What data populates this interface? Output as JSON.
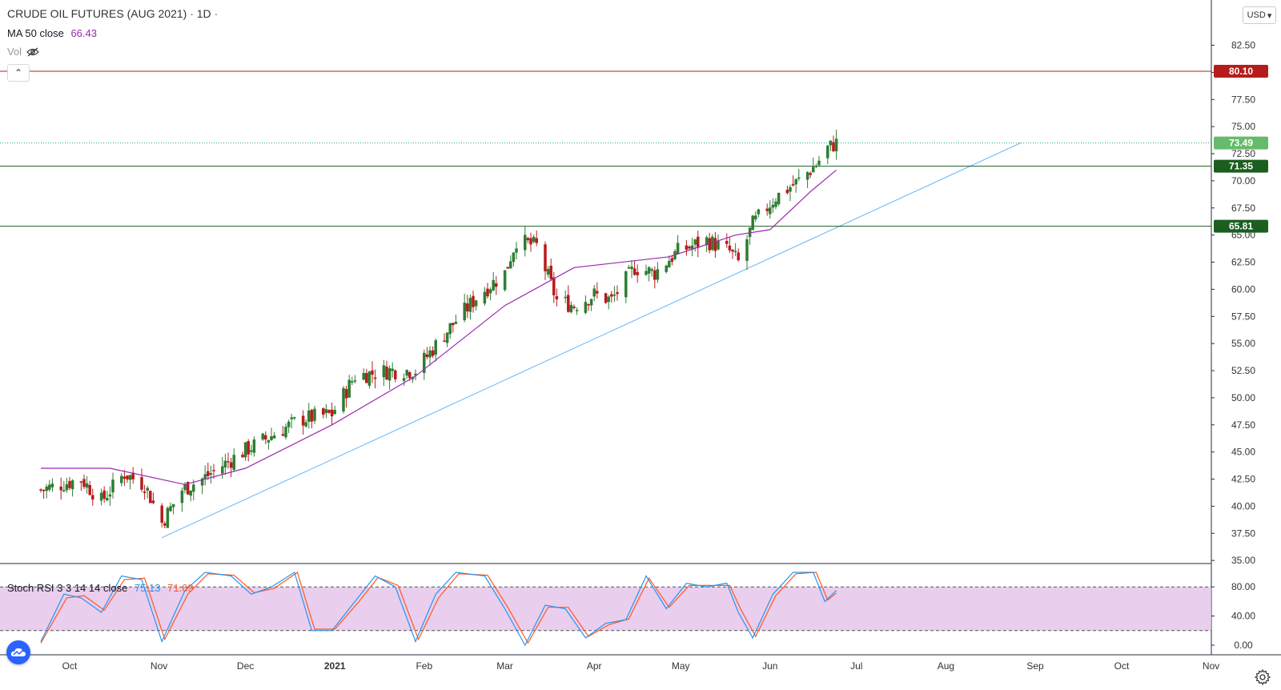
{
  "header": {
    "symbol": "CRUDE OIL FUTURES (AUG 2021)",
    "interval": "1D",
    "sep": "·",
    "ma_label": "MA 50 close",
    "ma_value": "66.43",
    "vol_label": "Vol",
    "collapse_glyph": "⌃"
  },
  "currency": "USD",
  "stoch": {
    "label": "Stoch RSI 3 3 14 14 close",
    "k": "75.13",
    "d": "71.69"
  },
  "colors": {
    "up": "#26a69a",
    "up_body": "#2e7d32",
    "down": "#b71c1c",
    "ma": "#9c27b0",
    "trend": "#64b5f6",
    "stoch_k": "#2196f3",
    "stoch_d": "#ff5722",
    "stoch_band": "#e1bee7",
    "resistance": "#b71c1c",
    "support": "#1b5e20",
    "price_label": "#66bb6a"
  },
  "chart_data": {
    "type": "candlestick",
    "title": "CRUDE OIL FUTURES (AUG 2021)",
    "interval": "1D",
    "y_ticks": [
      35.0,
      37.5,
      40.0,
      42.5,
      45.0,
      47.5,
      50.0,
      52.5,
      55.0,
      57.5,
      60.0,
      62.5,
      65.0,
      67.5,
      70.0,
      72.5,
      75.0,
      77.5,
      80.0,
      82.5
    ],
    "ylim": [
      34.0,
      86.0
    ],
    "x_ticks": [
      "Oct",
      "Nov",
      "Dec",
      "2021",
      "Feb",
      "Mar",
      "Apr",
      "May",
      "Jun",
      "Jul",
      "Aug",
      "Sep",
      "Oct",
      "Nov"
    ],
    "last_price": 73.49,
    "horizontal_levels": [
      {
        "value": 80.1,
        "label": "80.10",
        "role": "resistance"
      },
      {
        "value": 71.35,
        "label": "71.35",
        "role": "support"
      },
      {
        "value": 65.81,
        "label": "65.81",
        "role": "support"
      }
    ],
    "trendline": {
      "from": [
        "2020-11-02",
        37.1
      ],
      "to": [
        "2021-08-27",
        73.5
      ]
    },
    "ma50_anchors": [
      [
        "2020-09-21",
        43.5
      ],
      [
        "2020-10-15",
        43.5
      ],
      [
        "2020-11-10",
        42.0
      ],
      [
        "2020-12-01",
        43.5
      ],
      [
        "2020-12-31",
        47.5
      ],
      [
        "2021-01-29",
        52.0
      ],
      [
        "2021-03-01",
        58.5
      ],
      [
        "2021-03-25",
        62.0
      ],
      [
        "2021-04-27",
        63.0
      ],
      [
        "2021-05-20",
        65.0
      ],
      [
        "2021-06-01",
        65.5
      ],
      [
        "2021-06-15",
        69.0
      ],
      [
        "2021-06-24",
        71.0
      ]
    ],
    "price_anchors": [
      [
        "2020-09-21",
        41.5
      ],
      [
        "2020-10-05",
        42.5
      ],
      [
        "2020-10-12",
        40.5
      ],
      [
        "2020-10-20",
        43.0
      ],
      [
        "2020-10-27",
        42.0
      ],
      [
        "2020-11-02",
        38.5
      ],
      [
        "2020-11-09",
        41.5
      ],
      [
        "2020-11-16",
        42.5
      ],
      [
        "2020-11-30",
        45.0
      ],
      [
        "2020-12-10",
        46.5
      ],
      [
        "2020-12-20",
        48.0
      ],
      [
        "2020-12-31",
        48.5
      ],
      [
        "2021-01-08",
        52.0
      ],
      [
        "2021-01-20",
        52.5
      ],
      [
        "2021-01-29",
        52.5
      ],
      [
        "2021-02-10",
        56.5
      ],
      [
        "2021-02-20",
        59.5
      ],
      [
        "2021-03-01",
        61.5
      ],
      [
        "2021-03-05",
        64.5
      ],
      [
        "2021-03-12",
        64.0
      ],
      [
        "2021-03-19",
        59.0
      ],
      [
        "2021-03-25",
        58.5
      ],
      [
        "2021-04-01",
        59.5
      ],
      [
        "2021-04-07",
        59.0
      ],
      [
        "2021-04-15",
        62.0
      ],
      [
        "2021-04-22",
        61.5
      ],
      [
        "2021-04-30",
        63.5
      ],
      [
        "2021-05-10",
        64.5
      ],
      [
        "2021-05-18",
        63.5
      ],
      [
        "2021-05-21",
        62.5
      ],
      [
        "2021-05-26",
        66.0
      ],
      [
        "2021-06-03",
        68.5
      ],
      [
        "2021-06-11",
        70.0
      ],
      [
        "2021-06-17",
        71.5
      ],
      [
        "2021-06-21",
        73.0
      ],
      [
        "2021-06-24",
        73.49
      ]
    ],
    "stoch_rsi": {
      "k_period": 3,
      "d_period": 3,
      "rsi_length": 14,
      "stoch_length": 14,
      "source": "close",
      "k_last": 75.13,
      "d_last": 71.69,
      "y_ticks": [
        0.0,
        40.0,
        80.0
      ],
      "upper_band": 80,
      "lower_band": 20,
      "k_anchors": [
        [
          "2020-09-21",
          5
        ],
        [
          "2020-09-29",
          70
        ],
        [
          "2020-10-05",
          65
        ],
        [
          "2020-10-12",
          45
        ],
        [
          "2020-10-19",
          95
        ],
        [
          "2020-10-26",
          90
        ],
        [
          "2020-11-02",
          5
        ],
        [
          "2020-11-10",
          75
        ],
        [
          "2020-11-17",
          100
        ],
        [
          "2020-11-26",
          95
        ],
        [
          "2020-12-03",
          70
        ],
        [
          "2020-12-10",
          80
        ],
        [
          "2020-12-18",
          100
        ],
        [
          "2020-12-24",
          20
        ],
        [
          "2020-12-31",
          20
        ],
        [
          "2021-01-08",
          60
        ],
        [
          "2021-01-15",
          95
        ],
        [
          "2021-01-22",
          80
        ],
        [
          "2021-01-29",
          5
        ],
        [
          "2021-02-05",
          70
        ],
        [
          "2021-02-12",
          100
        ],
        [
          "2021-02-22",
          95
        ],
        [
          "2021-03-01",
          50
        ],
        [
          "2021-03-08",
          0
        ],
        [
          "2021-03-15",
          55
        ],
        [
          "2021-03-22",
          50
        ],
        [
          "2021-03-29",
          10
        ],
        [
          "2021-04-05",
          30
        ],
        [
          "2021-04-12",
          35
        ],
        [
          "2021-04-19",
          95
        ],
        [
          "2021-04-26",
          50
        ],
        [
          "2021-05-03",
          85
        ],
        [
          "2021-05-10",
          80
        ],
        [
          "2021-05-17",
          85
        ],
        [
          "2021-05-21",
          45
        ],
        [
          "2021-05-26",
          10
        ],
        [
          "2021-06-02",
          70
        ],
        [
          "2021-06-09",
          100
        ],
        [
          "2021-06-16",
          100
        ],
        [
          "2021-06-20",
          60
        ],
        [
          "2021-06-24",
          75.13
        ]
      ],
      "d_anchors": [
        [
          "2020-09-21",
          3
        ],
        [
          "2020-09-30",
          65
        ],
        [
          "2020-10-06",
          68
        ],
        [
          "2020-10-13",
          48
        ],
        [
          "2020-10-20",
          90
        ],
        [
          "2020-10-27",
          92
        ],
        [
          "2020-11-03",
          8
        ],
        [
          "2020-11-11",
          70
        ],
        [
          "2020-11-18",
          98
        ],
        [
          "2020-11-27",
          96
        ],
        [
          "2020-12-04",
          72
        ],
        [
          "2020-12-11",
          78
        ],
        [
          "2020-12-19",
          100
        ],
        [
          "2020-12-25",
          22
        ],
        [
          "2021-01-01",
          22
        ],
        [
          "2021-01-09",
          58
        ],
        [
          "2021-01-16",
          93
        ],
        [
          "2021-01-23",
          82
        ],
        [
          "2021-01-30",
          8
        ],
        [
          "2021-02-06",
          65
        ],
        [
          "2021-02-13",
          98
        ],
        [
          "2021-02-23",
          96
        ],
        [
          "2021-03-02",
          52
        ],
        [
          "2021-03-09",
          3
        ],
        [
          "2021-03-16",
          52
        ],
        [
          "2021-03-23",
          52
        ],
        [
          "2021-03-30",
          12
        ],
        [
          "2021-04-06",
          28
        ],
        [
          "2021-04-13",
          36
        ],
        [
          "2021-04-20",
          92
        ],
        [
          "2021-04-27",
          52
        ],
        [
          "2021-05-04",
          82
        ],
        [
          "2021-05-11",
          82
        ],
        [
          "2021-05-18",
          82
        ],
        [
          "2021-05-22",
          48
        ],
        [
          "2021-05-27",
          12
        ],
        [
          "2021-06-03",
          68
        ],
        [
          "2021-06-10",
          98
        ],
        [
          "2021-06-17",
          100
        ],
        [
          "2021-06-21",
          62
        ],
        [
          "2021-06-24",
          71.69
        ]
      ]
    }
  }
}
